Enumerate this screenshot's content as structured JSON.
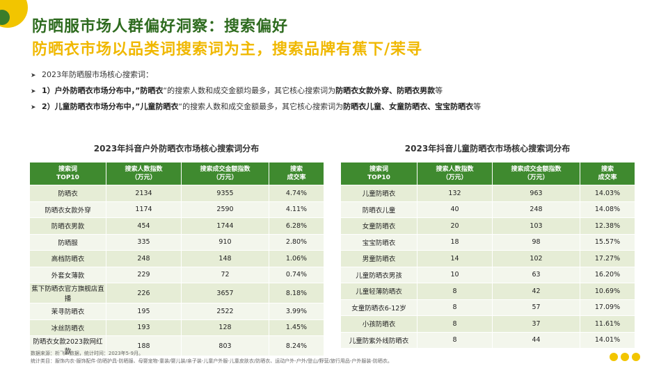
{
  "header": {
    "title": "防晒服市场人群偏好洞察：搜索偏好",
    "subtitle": "防晒衣市场以品类词搜索词为主，搜索品牌有蕉下/茉寻"
  },
  "bullets": [
    {
      "text_plain": "2023年防晒服市场核心搜索词：",
      "bold_lead": "",
      "mid": "",
      "bold_mid": "",
      "rest": "",
      "bold_tail": "",
      "end": ""
    },
    {
      "bold_lead": "1）户外防晒衣市场分布中，”防晒衣",
      "mid": "“的搜索人数和成交金额均最多，其它核心搜索词为",
      "bold_tail": "防晒衣女款外穿、防晒衣男款",
      "end": "等"
    },
    {
      "bold_lead": "2）儿童防晒衣市场分布中，”儿童防晒衣",
      "mid": "“的搜索人数和成交金额最多，其它核心搜索词为",
      "bold_tail": "防晒衣儿童、女童防晒衣、宝宝防晒衣",
      "end": "等"
    }
  ],
  "left_table": {
    "title": "2023年抖音户外防晒衣市场核心搜索词分布",
    "headers": [
      "搜索词\nTOP10",
      "搜索人数指数\n（万元）",
      "搜索成交金额指数\n（万元）",
      "搜索\n成交率"
    ],
    "rows": [
      [
        "防晒衣",
        "2134",
        "9355",
        "4.74%"
      ],
      [
        "防晒衣女款外穿",
        "1174",
        "2590",
        "4.11%"
      ],
      [
        "防晒衣男款",
        "454",
        "1744",
        "6.28%"
      ],
      [
        "防晒服",
        "335",
        "910",
        "2.80%"
      ],
      [
        "高档防晒衣",
        "248",
        "148",
        "1.06%"
      ],
      [
        "外套女薄款",
        "229",
        "72",
        "0.74%"
      ],
      [
        "蕉下防晒衣官方旗舰店直播",
        "226",
        "3657",
        "8.18%"
      ],
      [
        "茉寻防晒衣",
        "195",
        "2522",
        "3.99%"
      ],
      [
        "冰丝防晒衣",
        "193",
        "128",
        "1.45%"
      ],
      [
        "防晒衣女款2023款网红款",
        "188",
        "803",
        "8.24%"
      ]
    ]
  },
  "right_table": {
    "title": "2023年抖音儿童防晒衣市场核心搜索词分布",
    "headers": [
      "搜索词\nTOP10",
      "搜索人数指数\n（万元）",
      "搜索成交金额指数\n（万元）",
      "搜索\n成交率"
    ],
    "rows": [
      [
        "儿童防晒衣",
        "132",
        "963",
        "14.03%"
      ],
      [
        "防晒衣儿童",
        "40",
        "248",
        "14.08%"
      ],
      [
        "女童防晒衣",
        "20",
        "103",
        "12.38%"
      ],
      [
        "宝宝防晒衣",
        "18",
        "98",
        "15.57%"
      ],
      [
        "男童防晒衣",
        "14",
        "102",
        "17.27%"
      ],
      [
        "儿童防晒衣男孩",
        "10",
        "63",
        "16.20%"
      ],
      [
        "儿童轻薄防晒衣",
        "8",
        "42",
        "10.69%"
      ],
      [
        "女童防晒衣6-12岁",
        "8",
        "57",
        "17.09%"
      ],
      [
        "小孩防晒衣",
        "8",
        "37",
        "11.61%"
      ],
      [
        "儿童防紫外线防晒衣",
        "8",
        "44",
        "14.01%"
      ]
    ]
  },
  "footer": {
    "line1": "数据来源：析飞BI数据，统计时间：2023年5-9月。",
    "line2": "统计类目：服饰内衣-服饰配件-防晒护具-防晒服、母婴宠物-童装/婴儿装/亲子装-儿童户外服-儿童皮肤衣/防晒衣、运动户外-户外/登山/野营/旅行用品-户外服装-防晒衣。"
  },
  "colors": {
    "green": "#2e6b1f",
    "yellow": "#f0b800",
    "header_green": "#3f8a2f"
  }
}
